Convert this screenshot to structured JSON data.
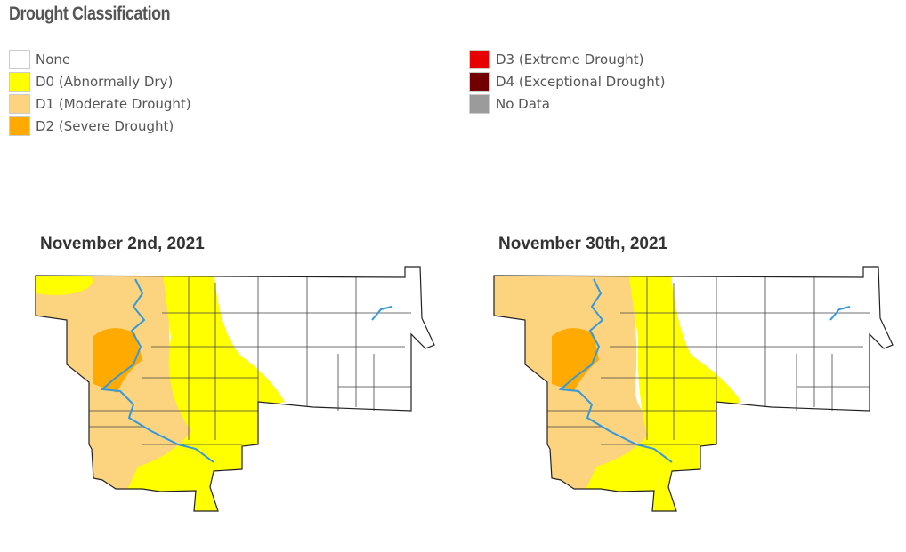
{
  "header": {
    "title": "Drought Classification"
  },
  "legend": [
    {
      "label": "None",
      "color": "#ffffff"
    },
    {
      "label": "D0 (Abnormally Dry)",
      "color": "#ffff00"
    },
    {
      "label": "D1 (Moderate Drought)",
      "color": "#fcd37f"
    },
    {
      "label": "D2 (Severe Drought)",
      "color": "#ffaa00"
    },
    {
      "label": "D3 (Extreme Drought)",
      "color": "#e60000"
    },
    {
      "label": "D4 (Exceptional Drought)",
      "color": "#730000"
    },
    {
      "label": "No Data",
      "color": "#9b9b9b"
    }
  ],
  "maps": [
    {
      "title": "November 2nd, 2021"
    },
    {
      "title": "November 30th, 2021"
    }
  ]
}
